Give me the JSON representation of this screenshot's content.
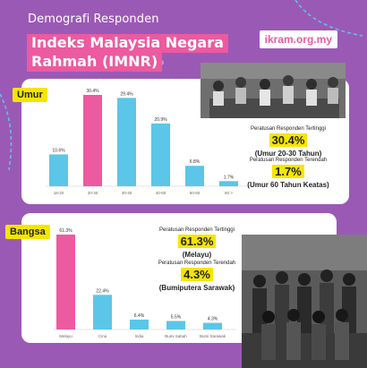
{
  "header": {
    "subtitle": "Demografi Responden",
    "title_line1": "Indeks Malaysia Negara",
    "title_line2": "Rahmah (IMNR)",
    "website": "ikram.org.my"
  },
  "colors": {
    "background": "#9b59b6",
    "pink": "#ec5aa0",
    "blue": "#5bc6e8",
    "yellow": "#f5e500"
  },
  "umur": {
    "tag": "Umur",
    "highest": {
      "label": "Peratusan Responden Tertinggi",
      "value": "30.4%",
      "desc": "(Umur 20-30 Tahun)"
    },
    "lowest": {
      "label": "Peratusan Responden Terendah",
      "value": "1.7%",
      "desc": "(Umur 60 Tahun Keatas)"
    }
  },
  "bangsa": {
    "tag": "Bangsa",
    "highest": {
      "label": "Peratusan Responden Tertinggi",
      "value": "61.3%",
      "desc": "(Melayu)"
    },
    "lowest": {
      "label": "Peratusan Responden Terendah",
      "value": "4.3%",
      "desc": "(Bumiputera Sarawak)"
    }
  },
  "chart_data": [
    {
      "type": "bar",
      "categories": [
        "18-20",
        "20-30",
        "30-40",
        "40-50",
        "50-60",
        "60 >"
      ],
      "values": [
        10.6,
        30.4,
        29.4,
        20.9,
        6.8,
        1.7
      ],
      "value_labels": [
        "10.6%",
        "30.4%",
        "29.4%",
        "20.9%",
        "6.8%",
        "1.7%"
      ],
      "highlight_index": 1,
      "ylim": [
        0,
        30.4
      ]
    },
    {
      "type": "bar",
      "categories": [
        "Melayu",
        "Cina",
        "India",
        "Bumi Sabah",
        "Bumi Sarawak"
      ],
      "values": [
        61.3,
        22.4,
        6.4,
        5.5,
        4.3
      ],
      "value_labels": [
        "61.3%",
        "22.4%",
        "6.4%",
        "5.5%",
        "4.3%"
      ],
      "highlight_index": 0,
      "ylim": [
        0,
        61.3
      ]
    }
  ]
}
